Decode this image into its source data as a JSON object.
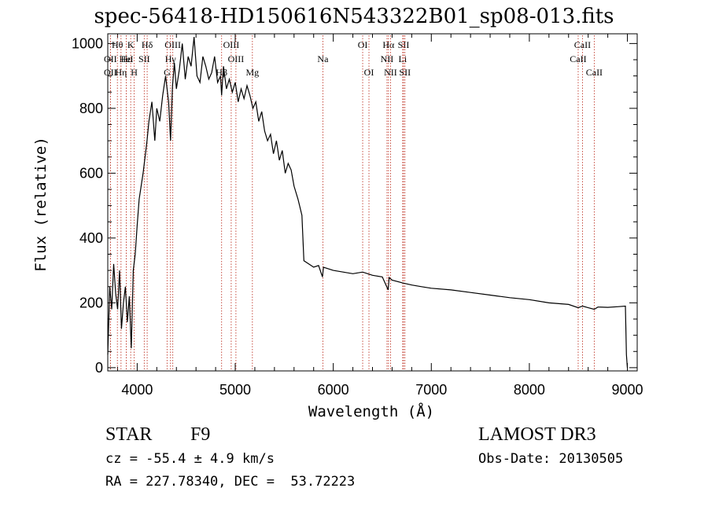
{
  "title": "spec-56418-HD150616N543322B01_sp08-013.fits",
  "info": {
    "class_label": "STAR",
    "subclass": "F9",
    "survey": "LAMOST DR3",
    "cz": "cz = -55.4 ± 4.9 km/s",
    "obs_date": "Obs-Date: 20130505",
    "coords": "RA = 227.78340, DEC =  53.72223"
  },
  "chart_data": {
    "type": "line",
    "title": "spec-56418-HD150616N543322B01_sp08-013.fits",
    "xlabel": "Wavelength (Å)",
    "ylabel": "Flux (relative)",
    "xlim": [
      3700,
      9100
    ],
    "ylim": [
      -10,
      1030
    ],
    "x_ticks": [
      4000,
      5000,
      6000,
      7000,
      8000,
      9000
    ],
    "y_ticks": [
      0,
      200,
      400,
      600,
      800,
      1000
    ],
    "series": [
      {
        "name": "flux",
        "x": [
          3700,
          3720,
          3740,
          3760,
          3780,
          3800,
          3820,
          3840,
          3860,
          3880,
          3900,
          3920,
          3940,
          3960,
          3980,
          4000,
          4020,
          4040,
          4060,
          4080,
          4100,
          4120,
          4150,
          4180,
          4200,
          4230,
          4260,
          4290,
          4320,
          4340,
          4360,
          4380,
          4400,
          4430,
          4460,
          4490,
          4520,
          4550,
          4580,
          4610,
          4640,
          4670,
          4700,
          4730,
          4760,
          4790,
          4820,
          4850,
          4861,
          4880,
          4910,
          4940,
          4970,
          5000,
          5030,
          5060,
          5090,
          5120,
          5150,
          5180,
          5210,
          5240,
          5270,
          5300,
          5330,
          5360,
          5390,
          5420,
          5450,
          5480,
          5510,
          5540,
          5570,
          5600,
          5640,
          5680,
          5700,
          5750,
          5800,
          5850,
          5890,
          5900,
          5950,
          6000,
          6100,
          6200,
          6300,
          6400,
          6500,
          6560,
          6570,
          6600,
          6700,
          6800,
          6900,
          7000,
          7200,
          7400,
          7600,
          7800,
          8000,
          8200,
          8400,
          8498,
          8542,
          8600,
          8662,
          8700,
          8800,
          8900,
          8980,
          8990,
          9000
        ],
        "values": [
          40,
          250,
          180,
          320,
          230,
          180,
          300,
          120,
          200,
          250,
          140,
          220,
          60,
          300,
          350,
          440,
          520,
          560,
          600,
          650,
          700,
          760,
          820,
          700,
          800,
          760,
          840,
          900,
          820,
          700,
          870,
          940,
          860,
          920,
          1000,
          890,
          960,
          930,
          1020,
          900,
          880,
          960,
          930,
          890,
          910,
          960,
          880,
          900,
          840,
          930,
          860,
          890,
          850,
          880,
          820,
          860,
          830,
          870,
          840,
          800,
          820,
          760,
          790,
          730,
          700,
          720,
          660,
          700,
          640,
          670,
          600,
          630,
          610,
          560,
          520,
          470,
          330,
          320,
          310,
          315,
          280,
          310,
          305,
          300,
          295,
          290,
          295,
          285,
          280,
          240,
          278,
          270,
          262,
          255,
          250,
          245,
          240,
          232,
          224,
          216,
          210,
          200,
          195,
          185,
          190,
          185,
          180,
          187,
          186,
          188,
          190,
          40,
          0
        ]
      }
    ],
    "lines": [
      {
        "label": "Hθ",
        "wl": 3798,
        "row": 1
      },
      {
        "label": "OII",
        "wl": 3727,
        "row": 2
      },
      {
        "label": "OII",
        "wl": 3727,
        "row": 3
      },
      {
        "label": "Hε",
        "wl": 3889,
        "row": 2
      },
      {
        "label": "HeI",
        "wl": 3889,
        "row": 2
      },
      {
        "label": "Hη",
        "wl": 3835,
        "row": 3
      },
      {
        "label": "K",
        "wl": 3934,
        "row": 1
      },
      {
        "label": "H",
        "wl": 3969,
        "row": 3
      },
      {
        "label": "SII",
        "wl": 4072,
        "row": 2
      },
      {
        "label": "Hδ",
        "wl": 4102,
        "row": 1
      },
      {
        "label": "OIII",
        "wl": 4363,
        "row": 1
      },
      {
        "label": "Hγ",
        "wl": 4340,
        "row": 2
      },
      {
        "label": "G",
        "wl": 4305,
        "row": 3
      },
      {
        "label": "OIII",
        "wl": 4959,
        "row": 1
      },
      {
        "label": "OIII",
        "wl": 5007,
        "row": 2
      },
      {
        "label": "Hβ",
        "wl": 4861,
        "row": 3
      },
      {
        "label": "Mg",
        "wl": 5175,
        "row": 3
      },
      {
        "label": "Na",
        "wl": 5894,
        "row": 2
      },
      {
        "label": "OI",
        "wl": 6300,
        "row": 1
      },
      {
        "label": "OI",
        "wl": 6364,
        "row": 3
      },
      {
        "label": "Hα",
        "wl": 6563,
        "row": 1
      },
      {
        "label": "SII",
        "wl": 6717,
        "row": 1
      },
      {
        "label": "NII",
        "wl": 6548,
        "row": 2
      },
      {
        "label": "Li",
        "wl": 6708,
        "row": 2
      },
      {
        "label": "NII",
        "wl": 6584,
        "row": 3
      },
      {
        "label": "SII",
        "wl": 6731,
        "row": 3
      },
      {
        "label": "CaII",
        "wl": 8542,
        "row": 1
      },
      {
        "label": "CaII",
        "wl": 8498,
        "row": 2
      },
      {
        "label": "CaII",
        "wl": 8662,
        "row": 3
      }
    ]
  }
}
